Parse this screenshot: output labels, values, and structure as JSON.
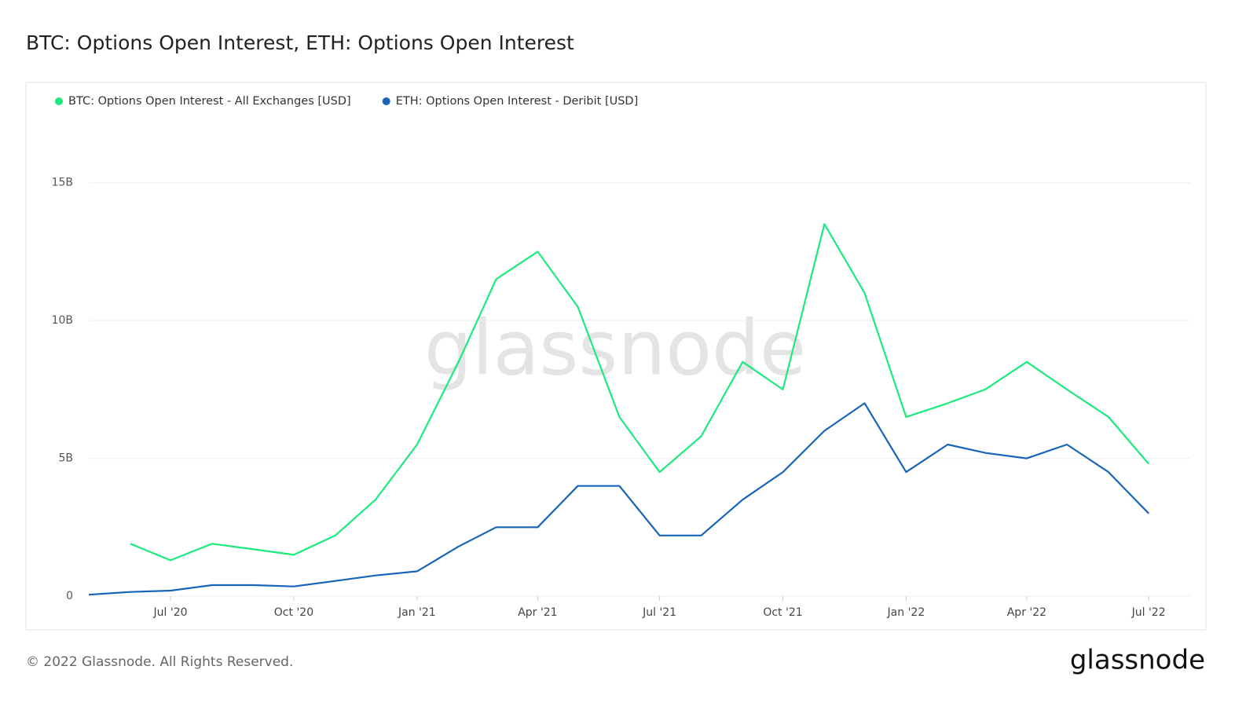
{
  "chart_data": {
    "type": "line",
    "title": "BTC: Options Open Interest, ETH: Options Open Interest",
    "x": [
      "2020-05",
      "2020-06",
      "2020-07",
      "2020-08",
      "2020-09",
      "2020-10",
      "2020-11",
      "2020-12",
      "2021-01",
      "2021-02",
      "2021-03",
      "2021-04",
      "2021-05",
      "2021-06",
      "2021-07",
      "2021-08",
      "2021-09",
      "2021-10",
      "2021-11",
      "2021-12",
      "2022-01",
      "2022-02",
      "2022-03",
      "2022-04",
      "2022-05",
      "2022-06",
      "2022-07"
    ],
    "series": [
      {
        "name": "BTC: Options Open Interest - All Exchanges [USD]",
        "color": "#1dea7d",
        "values": [
          null,
          1.9,
          1.3,
          1.9,
          1.7,
          1.5,
          2.2,
          3.5,
          5.5,
          8.5,
          11.5,
          12.5,
          10.5,
          6.5,
          4.5,
          5.8,
          8.5,
          7.5,
          13.5,
          11,
          6.5,
          7,
          7.5,
          8.5,
          7.5,
          6.5,
          4.8
        ]
      },
      {
        "name": "ETH: Options Open Interest - Deribit [USD]",
        "color": "#1764b8",
        "values": [
          0.05,
          0.15,
          0.2,
          0.4,
          0.4,
          0.35,
          0.55,
          0.75,
          0.9,
          1.8,
          2.5,
          2.5,
          4.0,
          4.0,
          2.2,
          2.2,
          3.5,
          4.5,
          6.0,
          7.0,
          4.5,
          5.5,
          5.2,
          5.0,
          5.5,
          4.5,
          3.0
        ]
      }
    ],
    "xlim": [
      "2020-05",
      "2022-07"
    ],
    "xticks": [
      {
        "value": "2020-07",
        "label": "Jul '20"
      },
      {
        "value": "2020-10",
        "label": "Oct '20"
      },
      {
        "value": "2021-01",
        "label": "Jan '21"
      },
      {
        "value": "2021-04",
        "label": "Apr '21"
      },
      {
        "value": "2021-07",
        "label": "Jul '21"
      },
      {
        "value": "2021-10",
        "label": "Oct '21"
      },
      {
        "value": "2022-01",
        "label": "Jan '22"
      },
      {
        "value": "2022-04",
        "label": "Apr '22"
      },
      {
        "value": "2022-07",
        "label": "Jul '22"
      }
    ],
    "ylim": [
      0,
      17.5
    ],
    "yticks": [
      {
        "value": 0,
        "label": "0"
      },
      {
        "value": 5,
        "label": "5B"
      },
      {
        "value": 10,
        "label": "10B"
      },
      {
        "value": 15,
        "label": "15B"
      }
    ],
    "grid": true,
    "watermark": "glassnode",
    "footer": "© 2022 Glassnode. All Rights Reserved.",
    "brand": "glassnode"
  }
}
